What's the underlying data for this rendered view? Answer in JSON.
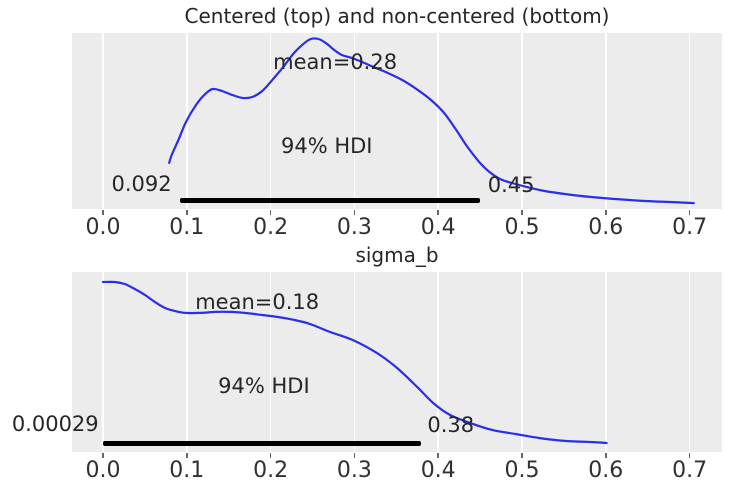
{
  "figure": {
    "background": "#ffffff",
    "axes_background": "#ececec",
    "grid_color": "#ffffff",
    "curve_color": "#2a2eec",
    "hdi_bar_color": "#000000",
    "text_color": "#262626"
  },
  "chart_data": [
    {
      "type": "line",
      "subtype": "kde-posterior",
      "title": "Centered (top) and non-centered (bottom)",
      "xlabel": "",
      "ylabel": "",
      "y_units": "normalized-density",
      "xlim": [
        -0.037,
        0.739
      ],
      "grid": "vertical-only",
      "legend": "none",
      "x_ticks": [
        0.0,
        0.1,
        0.2,
        0.3,
        0.4,
        0.5,
        0.6,
        0.7
      ],
      "x_tick_labels": [
        "0.0",
        "0.1",
        "0.2",
        "0.3",
        "0.4",
        "0.5",
        "0.6",
        "0.7"
      ],
      "mean": 0.28,
      "hdi": {
        "prob": 0.94,
        "lower": 0.092,
        "upper": 0.45
      },
      "annotations": [
        {
          "name": "mean-label",
          "text": "mean=0.28",
          "x": 0.277,
          "y": 0.865
        },
        {
          "name": "hdi-interval-label",
          "text": "94% HDI",
          "x": 0.267,
          "y": 0.371
        },
        {
          "name": "hdi-lower-label",
          "text": "0.092",
          "x": 0.046,
          "y": 0.147
        },
        {
          "name": "hdi-upper-label",
          "text": "0.45",
          "x": 0.487,
          "y": 0.141
        }
      ],
      "series": [
        {
          "name": "kde",
          "x": [
            0.079,
            0.082,
            0.09,
            0.099,
            0.111,
            0.122,
            0.131,
            0.142,
            0.154,
            0.167,
            0.178,
            0.19,
            0.202,
            0.215,
            0.228,
            0.239,
            0.248,
            0.257,
            0.266,
            0.276,
            0.285,
            0.297,
            0.309,
            0.323,
            0.34,
            0.357,
            0.374,
            0.39,
            0.406,
            0.42,
            0.434,
            0.448,
            0.461,
            0.474,
            0.488,
            0.506,
            0.527,
            0.551,
            0.581,
            0.611,
            0.647,
            0.677,
            0.705
          ],
          "y": [
            0.271,
            0.318,
            0.406,
            0.512,
            0.612,
            0.676,
            0.706,
            0.694,
            0.671,
            0.653,
            0.659,
            0.694,
            0.759,
            0.835,
            0.918,
            0.971,
            1.0,
            1.0,
            0.976,
            0.935,
            0.906,
            0.888,
            0.865,
            0.835,
            0.8,
            0.759,
            0.706,
            0.647,
            0.571,
            0.476,
            0.371,
            0.282,
            0.218,
            0.176,
            0.153,
            0.129,
            0.106,
            0.088,
            0.071,
            0.059,
            0.047,
            0.041,
            0.035
          ]
        }
      ]
    },
    {
      "type": "line",
      "subtype": "kde-posterior",
      "title": "sigma_b",
      "xlabel": "",
      "ylabel": "",
      "y_units": "normalized-density",
      "xlim": [
        -0.037,
        0.739
      ],
      "grid": "vertical-only",
      "legend": "none",
      "x_ticks": [
        0.0,
        0.1,
        0.2,
        0.3,
        0.4,
        0.5,
        0.6,
        0.7
      ],
      "x_tick_labels": [
        "0.0",
        "0.1",
        "0.2",
        "0.3",
        "0.4",
        "0.5",
        "0.6",
        "0.7"
      ],
      "mean": 0.18,
      "hdi": {
        "prob": 0.94,
        "lower": 0.00029,
        "upper": 0.38
      },
      "annotations": [
        {
          "name": "mean-label",
          "text": "mean=0.18",
          "x": 0.184,
          "y": 0.882
        },
        {
          "name": "hdi-interval-label",
          "text": "94% HDI",
          "x": 0.192,
          "y": 0.388
        },
        {
          "name": "hdi-lower-label",
          "text": "0.00029",
          "x": -0.057,
          "y": 0.165
        },
        {
          "name": "hdi-upper-label",
          "text": "0.38",
          "x": 0.415,
          "y": 0.159
        }
      ],
      "series": [
        {
          "name": "kde",
          "x": [
            0.0,
            0.014,
            0.026,
            0.038,
            0.05,
            0.062,
            0.074,
            0.086,
            0.098,
            0.116,
            0.134,
            0.152,
            0.169,
            0.19,
            0.209,
            0.229,
            0.247,
            0.271,
            0.298,
            0.327,
            0.351,
            0.375,
            0.394,
            0.414,
            0.438,
            0.465,
            0.492,
            0.521,
            0.551,
            0.581,
            0.601
          ],
          "y": [
            1.0,
            1.0,
            0.988,
            0.959,
            0.924,
            0.882,
            0.847,
            0.829,
            0.818,
            0.818,
            0.824,
            0.824,
            0.818,
            0.806,
            0.794,
            0.776,
            0.753,
            0.706,
            0.659,
            0.582,
            0.494,
            0.382,
            0.288,
            0.218,
            0.171,
            0.129,
            0.106,
            0.082,
            0.065,
            0.059,
            0.053
          ]
        }
      ]
    }
  ]
}
